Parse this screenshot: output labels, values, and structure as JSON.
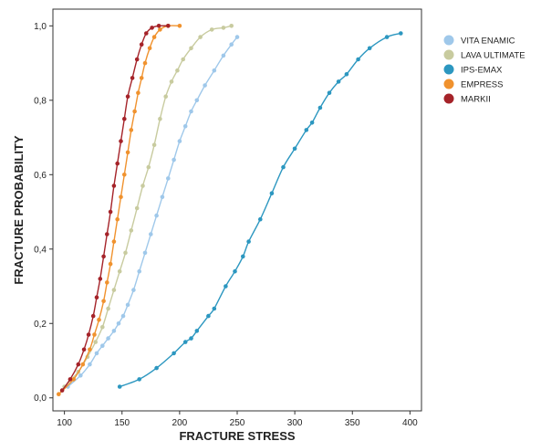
{
  "chart_data": {
    "type": "line",
    "title": "",
    "xlabel": "FRACTURE STRESS",
    "ylabel": "FRACTURE PROBABILITY",
    "xlim": [
      90,
      410
    ],
    "ylim": [
      -0.035,
      1.045
    ],
    "x_ticks": [
      100,
      150,
      200,
      250,
      300,
      350,
      400
    ],
    "x_tick_labels": [
      "100",
      "150",
      "200",
      "250",
      "300",
      "350",
      "400"
    ],
    "y_ticks": [
      0,
      0.2,
      0.4,
      0.6,
      0.8,
      1.0
    ],
    "y_tick_labels": [
      "0,0",
      "0,2",
      "0,4",
      "0,6",
      "0,8",
      "1,0"
    ],
    "grid": false,
    "legend_position": "top-right",
    "series": [
      {
        "name": "VITA ENAMIC",
        "color": "#9fc8ea",
        "x": [
          103,
          114,
          122,
          128,
          133,
          138,
          143,
          147,
          151,
          155,
          160,
          165,
          170,
          175,
          180,
          185,
          190,
          195,
          200,
          205,
          210,
          215,
          222,
          230,
          238,
          245,
          250
        ],
        "y": [
          0.03,
          0.06,
          0.09,
          0.12,
          0.14,
          0.16,
          0.18,
          0.2,
          0.22,
          0.25,
          0.29,
          0.34,
          0.39,
          0.44,
          0.49,
          0.54,
          0.59,
          0.64,
          0.69,
          0.73,
          0.77,
          0.8,
          0.84,
          0.88,
          0.92,
          0.95,
          0.97
        ]
      },
      {
        "name": "LAVA ULTIMATE",
        "color": "#c8cb9f",
        "x": [
          100,
          112,
          120,
          127,
          133,
          138,
          143,
          148,
          153,
          158,
          163,
          168,
          173,
          178,
          183,
          188,
          193,
          198,
          203,
          210,
          218,
          228,
          238,
          245
        ],
        "y": [
          0.03,
          0.07,
          0.11,
          0.15,
          0.19,
          0.24,
          0.29,
          0.34,
          0.39,
          0.45,
          0.51,
          0.57,
          0.62,
          0.68,
          0.75,
          0.81,
          0.85,
          0.88,
          0.91,
          0.94,
          0.97,
          0.99,
          0.995,
          1.0
        ]
      },
      {
        "name": "IPS-EMAX",
        "color": "#2c97c0",
        "x": [
          148,
          165,
          180,
          195,
          205,
          210,
          215,
          225,
          230,
          240,
          248,
          255,
          260,
          270,
          280,
          290,
          300,
          310,
          315,
          322,
          330,
          338,
          345,
          355,
          365,
          380,
          392
        ],
        "y": [
          0.03,
          0.05,
          0.08,
          0.12,
          0.15,
          0.16,
          0.18,
          0.22,
          0.24,
          0.3,
          0.34,
          0.38,
          0.42,
          0.48,
          0.55,
          0.62,
          0.67,
          0.72,
          0.74,
          0.78,
          0.82,
          0.85,
          0.87,
          0.91,
          0.94,
          0.97,
          0.98
        ]
      },
      {
        "name": "EMPRESS",
        "color": "#f0922e",
        "x": [
          95,
          108,
          116,
          122,
          126,
          130,
          134,
          137,
          140,
          143,
          146,
          149,
          152,
          155,
          158,
          161,
          164,
          167,
          170,
          174,
          178,
          183,
          190,
          200
        ],
        "y": [
          0.01,
          0.05,
          0.09,
          0.13,
          0.17,
          0.21,
          0.26,
          0.31,
          0.36,
          0.42,
          0.48,
          0.54,
          0.6,
          0.66,
          0.72,
          0.77,
          0.82,
          0.86,
          0.9,
          0.94,
          0.97,
          0.99,
          1.0,
          1.0
        ]
      },
      {
        "name": "MARKII",
        "color": "#a52329",
        "x": [
          98,
          105,
          112,
          117,
          121,
          125,
          128,
          131,
          134,
          137,
          140,
          143,
          146,
          149,
          152,
          155,
          159,
          163,
          167,
          171,
          176,
          182,
          190
        ],
        "y": [
          0.02,
          0.05,
          0.09,
          0.13,
          0.17,
          0.22,
          0.27,
          0.32,
          0.38,
          0.44,
          0.5,
          0.57,
          0.63,
          0.69,
          0.75,
          0.81,
          0.86,
          0.91,
          0.95,
          0.98,
          0.995,
          1.0,
          1.0
        ]
      }
    ]
  }
}
